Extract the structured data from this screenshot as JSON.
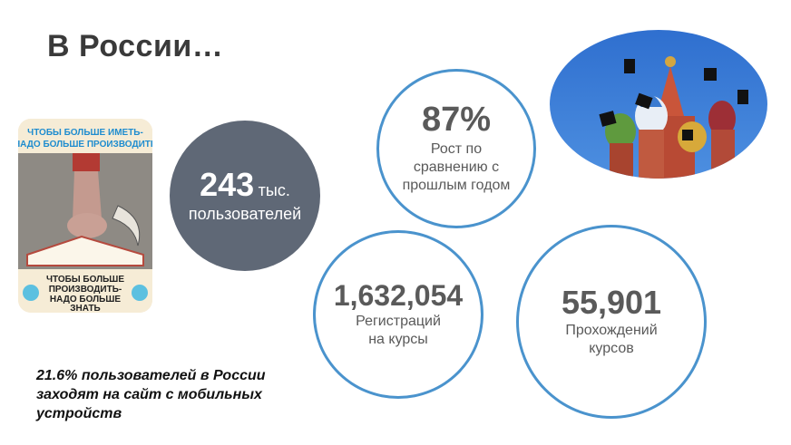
{
  "slide": {
    "title": "В России…",
    "poster": {
      "top_text": "ЧТОБЫ БОЛЬШЕ ИМЕТЬ- НАДО БОЛЬШЕ ПРОИЗВОДИТЬ",
      "bottom_text": "ЧТОБЫ БОЛЬШЕ ПРОИЗВОДИТЬ- НАДО БОЛЬШЕ ЗНАТЬ"
    },
    "users": {
      "value": "243",
      "unit": "тыс.",
      "label": "пользователей"
    },
    "growth": {
      "value": "87%",
      "label_lines": [
        "Рост по",
        "сравнению с",
        "прошлым годом"
      ]
    },
    "registrations": {
      "value": "1,632,054",
      "label_lines": [
        "Регистраций",
        "на курсы"
      ]
    },
    "completions": {
      "value": "55,901",
      "label_lines": [
        "Прохождений",
        "курсов"
      ]
    },
    "mobile_note": "21.6% пользователей в России заходят на сайт с мобильных устройств",
    "colors": {
      "circle_border": "#4a93cd",
      "dark_circle": "#5f6876",
      "text_gray": "#595959"
    }
  }
}
